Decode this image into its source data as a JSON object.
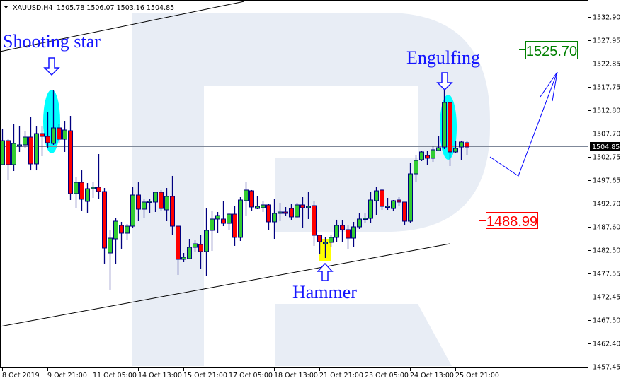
{
  "header": {
    "symbol": "XAUUSD,H4",
    "ohlc": "1505.78 1506.07 1503.16 1504.85",
    "menu_icon": "triangle-down-icon"
  },
  "colors": {
    "bull": "#32cd32",
    "bear": "#ff0000",
    "wick": "#000080",
    "annotation": "#1414ff",
    "highlight_cyan": "#00ffff",
    "highlight_yellow": "#ffff00",
    "target_up": "#008000",
    "target_down": "#ff0000",
    "watermark": "#e8edf5"
  },
  "annotations": {
    "shooting_star": "Shooting star",
    "engulfing": "Engulfing",
    "hammer": "Hammer",
    "target_high": "1525.70",
    "target_low": "1488.99",
    "current_price": "1504.85"
  },
  "chart_data": {
    "type": "candlestick",
    "title": "",
    "xlabel": "",
    "ylabel": "",
    "ylim": [
      1457.45,
      1532.9
    ],
    "grid": false,
    "y_ticks": [
      "1532.90",
      "1527.95",
      "1522.85",
      "1517.75",
      "1512.80",
      "1507.70",
      "1502.75",
      "1497.65",
      "1492.70",
      "1487.60",
      "1482.50",
      "1477.55",
      "1472.45",
      "1467.50",
      "1462.40",
      "1457.45"
    ],
    "x_ticks": [
      {
        "label": "8 Oct 2019",
        "index": 0
      },
      {
        "label": "9 Oct 21:00",
        "index": 8
      },
      {
        "label": "11 Oct 05:00",
        "index": 16
      },
      {
        "label": "14 Oct 13:00",
        "index": 24
      },
      {
        "label": "15 Oct 21:00",
        "index": 32
      },
      {
        "label": "17 Oct 05:00",
        "index": 40
      },
      {
        "label": "18 Oct 13:00",
        "index": 48
      },
      {
        "label": "21 Oct 21:00",
        "index": 56
      },
      {
        "label": "23 Oct 05:00",
        "index": 64
      },
      {
        "label": "24 Oct 13:00",
        "index": 72
      },
      {
        "label": "25 Oct 21:00",
        "index": 80
      }
    ],
    "current_price": 1504.85,
    "levels": {
      "target_high": 1525.7,
      "target_low": 1488.99
    },
    "candles_ohlc": [
      [
        1501.04,
        1508.82,
        1501.04,
        1506.23
      ],
      [
        1506.23,
        1506.68,
        1497.69,
        1501.04
      ],
      [
        1501.04,
        1509.73,
        1499.67,
        1505.62
      ],
      [
        1505.01,
        1509.43,
        1503.79,
        1505.31
      ],
      [
        1505.31,
        1508.36,
        1504.7,
        1506.99
      ],
      [
        1506.99,
        1511.41,
        1499.82,
        1501.2
      ],
      [
        1501.2,
        1509.27,
        1499.82,
        1507.75
      ],
      [
        1507.75,
        1509.27,
        1502.87,
        1507.14
      ],
      [
        1507.14,
        1512.32,
        1504.7,
        1505.77
      ],
      [
        1505.62,
        1517.2,
        1505.31,
        1508.97
      ],
      [
        1508.97,
        1509.88,
        1505.77,
        1506.53
      ],
      [
        1506.53,
        1510.49,
        1503.79,
        1508.51
      ],
      [
        1508.36,
        1511.56,
        1493.42,
        1494.8
      ],
      [
        1494.8,
        1498.3,
        1491.59,
        1497.23
      ],
      [
        1497.23,
        1499.82,
        1491.14,
        1493.58
      ],
      [
        1493.12,
        1497.08,
        1490.68,
        1495.86
      ],
      [
        1495.86,
        1497.39,
        1493.88,
        1496.17
      ],
      [
        1496.17,
        1503.33,
        1493.58,
        1495.25
      ],
      [
        1495.25,
        1496.01,
        1479.71,
        1483.06
      ],
      [
        1481.99,
        1487.02,
        1474.07,
        1485.19
      ],
      [
        1485.04,
        1489.61,
        1479.55,
        1488.85
      ],
      [
        1487.94,
        1488.7,
        1482.91,
        1486.26
      ],
      [
        1486.26,
        1488.24,
        1484.89,
        1487.78
      ],
      [
        1487.78,
        1496.32,
        1487.33,
        1494.49
      ],
      [
        1494.49,
        1497.23,
        1488.85,
        1491.44
      ],
      [
        1491.44,
        1493.73,
        1489.46,
        1492.97
      ],
      [
        1492.97,
        1493.58,
        1490.53,
        1493.12
      ],
      [
        1492.97,
        1495.25,
        1490.83,
        1495.1
      ],
      [
        1495.1,
        1495.56,
        1491.14,
        1491.59
      ],
      [
        1491.29,
        1496.01,
        1488.85,
        1494.19
      ],
      [
        1494.19,
        1498.61,
        1485.95,
        1487.78
      ],
      [
        1487.78,
        1487.78,
        1477.27,
        1480.62
      ],
      [
        1480.62,
        1481.99,
        1480.01,
        1481.08
      ],
      [
        1480.77,
        1485.04,
        1480.62,
        1483.21
      ],
      [
        1483.21,
        1484.89,
        1482.14,
        1483.97
      ],
      [
        1483.82,
        1485.95,
        1478.64,
        1482.3
      ],
      [
        1482.3,
        1491.59,
        1477.11,
        1486.87
      ],
      [
        1486.87,
        1491.14,
        1482.45,
        1489.31
      ],
      [
        1489.31,
        1490.83,
        1486.26,
        1490.07
      ],
      [
        1489.31,
        1493.12,
        1487.78,
        1488.39
      ],
      [
        1488.39,
        1490.68,
        1487.02,
        1490.37
      ],
      [
        1490.37,
        1492.05,
        1483.52,
        1485.35
      ],
      [
        1485.35,
        1494.03,
        1484.58,
        1493.42
      ],
      [
        1493.27,
        1497.39,
        1489.92,
        1495.56
      ],
      [
        1495.4,
        1495.56,
        1491.14,
        1491.9
      ],
      [
        1491.59,
        1494.19,
        1491.44,
        1492.05
      ],
      [
        1491.75,
        1493.12,
        1490.83,
        1492.36
      ],
      [
        1492.36,
        1492.51,
        1487.02,
        1488.7
      ],
      [
        1488.7,
        1493.58,
        1485.04,
        1490.53
      ],
      [
        1490.53,
        1492.81,
        1488.85,
        1490.83
      ],
      [
        1490.83,
        1491.9,
        1489.92,
        1490.53
      ],
      [
        1491.59,
        1492.51,
        1489.16,
        1489.77
      ],
      [
        1489.77,
        1492.81,
        1489.46,
        1492.36
      ],
      [
        1492.36,
        1494.03,
        1487.48,
        1491.75
      ],
      [
        1491.75,
        1495.25,
        1489.31,
        1492.05
      ],
      [
        1492.2,
        1493.27,
        1483.52,
        1485.8
      ],
      [
        1485.8,
        1485.95,
        1481.69,
        1484.43
      ],
      [
        1483.97,
        1485.35,
        1480.92,
        1484.28
      ],
      [
        1484.28,
        1485.95,
        1483.36,
        1485.35
      ],
      [
        1485.35,
        1489.16,
        1484.43,
        1487.94
      ],
      [
        1487.94,
        1489.0,
        1484.43,
        1487.02
      ],
      [
        1487.02,
        1487.94,
        1482.91,
        1485.19
      ],
      [
        1485.19,
        1488.7,
        1483.21,
        1487.63
      ],
      [
        1487.63,
        1490.68,
        1487.17,
        1489.31
      ],
      [
        1489.31,
        1490.53,
        1488.39,
        1489.46
      ],
      [
        1489.46,
        1495.1,
        1488.39,
        1493.42
      ],
      [
        1493.27,
        1496.32,
        1490.22,
        1495.4
      ],
      [
        1495.56,
        1495.71,
        1491.29,
        1492.05
      ],
      [
        1491.9,
        1493.88,
        1491.29,
        1492.05
      ],
      [
        1491.59,
        1493.42,
        1490.98,
        1493.27
      ],
      [
        1493.42,
        1494.03,
        1492.05,
        1492.97
      ],
      [
        1492.97,
        1492.97,
        1488.09,
        1488.85
      ],
      [
        1488.85,
        1501.5,
        1488.55,
        1499.06
      ],
      [
        1499.06,
        1503.18,
        1497.39,
        1501.96
      ],
      [
        1502.11,
        1504.09,
        1501.81,
        1503.79
      ],
      [
        1503.03,
        1504.09,
        1500.89,
        1502.42
      ],
      [
        1502.42,
        1505.01,
        1501.65,
        1504.25
      ],
      [
        1504.09,
        1507.14,
        1503.94,
        1504.7
      ],
      [
        1504.85,
        1517.96,
        1504.4,
        1514.46
      ],
      [
        1514.46,
        1514.46,
        1500.74,
        1503.79
      ],
      [
        1503.79,
        1506.23,
        1503.48,
        1504.55
      ],
      [
        1504.85,
        1506.23,
        1502.11,
        1505.92
      ],
      [
        1505.78,
        1506.07,
        1503.16,
        1504.85
      ]
    ]
  }
}
